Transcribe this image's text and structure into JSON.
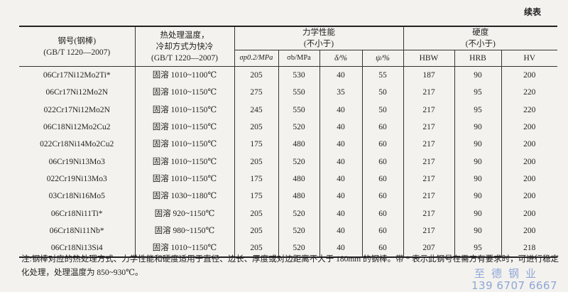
{
  "caption": "续表",
  "header": {
    "grade": "钢号(钢棒)",
    "grade_std": "(GB/T 1220—2007)",
    "heat_l1": "热处理温度，",
    "heat_l2": "冷却方式为快冷",
    "heat_std": "(GB/T 1220—2007)",
    "mech": "力学性能",
    "mech_sub": "(不小于)",
    "hard": "硬度",
    "hard_sub": "(不小于)",
    "cols": [
      "σp0.2/MPa",
      "σb/MPa",
      "δ/%",
      "ψ/%",
      "HBW",
      "HRB",
      "HV"
    ]
  },
  "rows": [
    [
      "06Cr17Ni12Mo2Ti*",
      "固溶 1010~1100℃",
      "205",
      "530",
      "40",
      "55",
      "187",
      "90",
      "200"
    ],
    [
      "06Cr17Ni12Mo2N",
      "固溶 1010~1150℃",
      "275",
      "550",
      "35",
      "50",
      "217",
      "95",
      "220"
    ],
    [
      "022Cr17Ni12Mo2N",
      "固溶 1010~1150℃",
      "245",
      "550",
      "40",
      "50",
      "217",
      "95",
      "220"
    ],
    [
      "06C18Ni12Mo2Cu2",
      "固溶 1010~1150℃",
      "205",
      "520",
      "40",
      "60",
      "217",
      "90",
      "200"
    ],
    [
      "022Cr18Ni14Mo2Cu2",
      "固溶 1010~1150℃",
      "175",
      "480",
      "40",
      "60",
      "217",
      "90",
      "200"
    ],
    [
      "06Cr19Ni13Mo3",
      "固溶 1010~1150℃",
      "205",
      "520",
      "40",
      "60",
      "217",
      "90",
      "200"
    ],
    [
      "022Cr19Ni13Mo3",
      "固溶 1010~1150℃",
      "175",
      "480",
      "40",
      "60",
      "217",
      "90",
      "200"
    ],
    [
      "03Cr18Ni16Mo5",
      "固溶 1030~1180℃",
      "175",
      "480",
      "40",
      "60",
      "217",
      "90",
      "200"
    ],
    [
      "06Cr18Ni11Ti*",
      "固溶 920~1150℃",
      "205",
      "520",
      "40",
      "60",
      "217",
      "90",
      "200"
    ],
    [
      "06Cr18Ni11Nb*",
      "固溶 980~1150℃",
      "205",
      "520",
      "40",
      "60",
      "217",
      "90",
      "200"
    ],
    [
      "06Cr18Ni13Si4",
      "固溶 1010~1150℃",
      "205",
      "520",
      "40",
      "60",
      "207",
      "95",
      "218"
    ]
  ],
  "note": "注:钢棒对应的热处理方式、力学性能和硬度适用于直径、边长、厚度或对边距离不大于 180mm 的钢棒。带 * 表示此钢号在需方有要求时，可进行稳定化处理，处理温度为 850~930℃。",
  "watermark": {
    "name": "至德钢业",
    "phone": "139 6707 6667",
    "color": "#8fa6d8"
  }
}
